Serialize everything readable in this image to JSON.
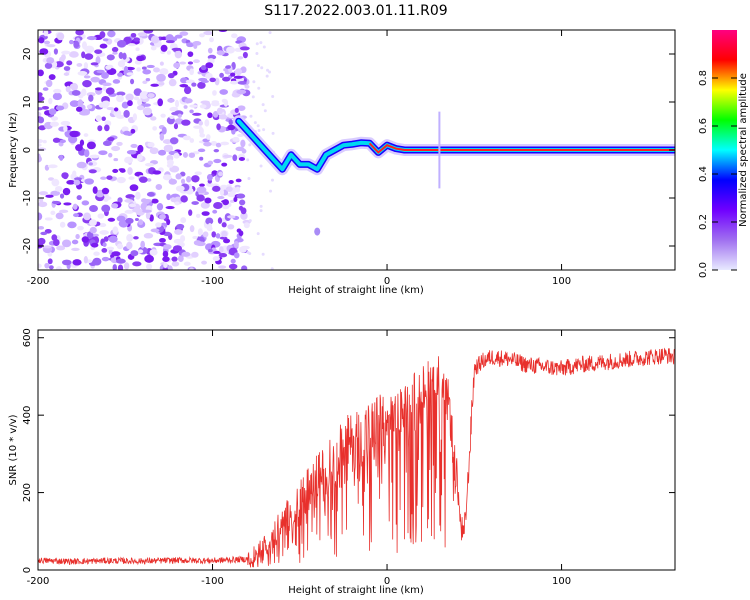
{
  "title": "S117.2022.003.01.11.R09",
  "colors": {
    "signal": "#e8302c",
    "noise_scatter": "#7a1cf0",
    "frame": "#000000"
  },
  "chart_data": [
    {
      "type": "heatmap",
      "xlabel": "Height of straight line (km)",
      "ylabel": "Frequency (Hz)",
      "xlim": [
        -200,
        165
      ],
      "ylim": [
        -25,
        25
      ],
      "xticks": [
        -200,
        -100,
        0,
        100
      ],
      "yticks": [
        -20,
        -10,
        0,
        10,
        20
      ],
      "grid": false,
      "colorbar": {
        "label": "Normalized spectral amplitude",
        "range": [
          0,
          1
        ],
        "ticks": [
          0.0,
          0.2,
          0.4,
          0.6,
          0.8
        ],
        "colormap": "hsv-reversed",
        "stops": [
          "#e8eaff",
          "#a070f0",
          "#7000ff",
          "#0000ff",
          "#00ffff",
          "#00ff00",
          "#ffff00",
          "#ff0000",
          "#ff0080"
        ]
      },
      "noise_region_x": [
        -200,
        -80
      ],
      "frequency_track": {
        "x": [
          -85,
          -80,
          -75,
          -70,
          -65,
          -60,
          -55,
          -50,
          -45,
          -40,
          -35,
          -30,
          -25,
          -20,
          -15,
          -10,
          -5,
          0,
          5,
          10,
          20,
          40,
          60,
          80,
          100,
          120,
          140,
          165
        ],
        "y": [
          6,
          4,
          2,
          0,
          -2,
          -4,
          -1,
          -3,
          -3,
          -4,
          -1,
          0,
          1,
          1.2,
          1.5,
          1.4,
          -0.5,
          1,
          0.3,
          0,
          0,
          0,
          0,
          0,
          0,
          0,
          0,
          0
        ]
      }
    },
    {
      "type": "line",
      "xlabel": "Height of straight line (km)",
      "ylabel": "SNR (10 * v/v)",
      "xlim": [
        -200,
        165
      ],
      "ylim": [
        0,
        620
      ],
      "xticks": [
        -200,
        -100,
        0,
        100
      ],
      "yticks": [
        0,
        200,
        400,
        600
      ],
      "grid": false,
      "series": [
        {
          "x": [
            -200,
            -180,
            -160,
            -140,
            -120,
            -100,
            -90,
            -80,
            -75,
            -70,
            -65,
            -60,
            -55,
            -50,
            -45,
            -40,
            -35,
            -30,
            -25,
            -20,
            -15,
            -10,
            -5,
            0,
            5,
            10,
            15,
            20,
            25,
            30,
            33,
            36,
            38,
            40,
            42,
            44,
            46,
            50,
            55,
            60,
            70,
            80,
            90,
            100,
            110,
            120,
            130,
            140,
            150,
            160,
            165
          ],
          "y": [
            25,
            22,
            24,
            23,
            25,
            24,
            26,
            28,
            35,
            60,
            90,
            120,
            150,
            180,
            210,
            240,
            260,
            290,
            320,
            330,
            340,
            350,
            360,
            380,
            400,
            420,
            450,
            470,
            490,
            500,
            460,
            420,
            300,
            250,
            120,
            80,
            200,
            520,
            540,
            550,
            545,
            530,
            525,
            520,
            530,
            535,
            540,
            545,
            550,
            555,
            550
          ]
        }
      ]
    }
  ]
}
